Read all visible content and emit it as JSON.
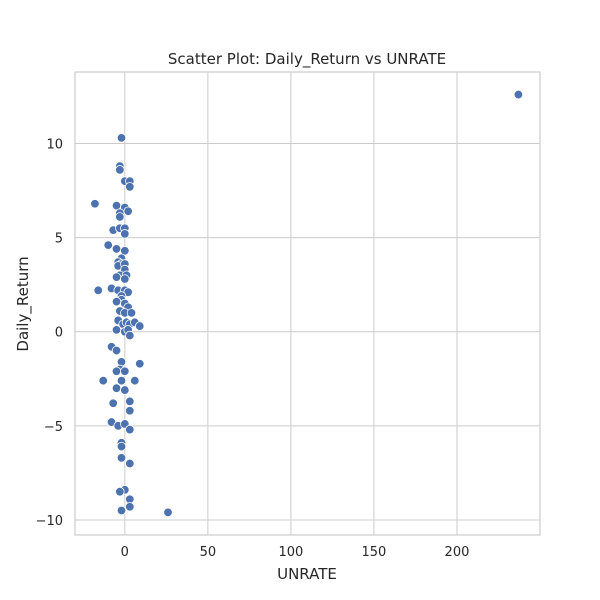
{
  "chart_data": {
    "type": "scatter",
    "title": "Scatter Plot: Daily_Return vs UNRATE",
    "xlabel": "UNRATE",
    "ylabel": "Daily_Return",
    "xlim": [
      -30,
      250
    ],
    "ylim": [
      -10.8,
      13.8
    ],
    "grid": true,
    "style": {
      "background": "#ffffff",
      "grid_color": "#cccccc",
      "point_color": "#4c72b0",
      "point_edge": "#ffffff"
    },
    "x_ticks": [
      {
        "value": 0,
        "label": "0"
      },
      {
        "value": 50,
        "label": "50"
      },
      {
        "value": 100,
        "label": "100"
      },
      {
        "value": 150,
        "label": "150"
      },
      {
        "value": 200,
        "label": "200"
      }
    ],
    "y_ticks": [
      {
        "value": -10,
        "label": "−10"
      },
      {
        "value": -5,
        "label": "−5"
      },
      {
        "value": 0,
        "label": "0"
      },
      {
        "value": 5,
        "label": "5"
      },
      {
        "value": 10,
        "label": "10"
      }
    ],
    "series": [
      {
        "points": [
          [
            -2,
            10.3
          ],
          [
            -3,
            8.8
          ],
          [
            -3,
            8.6
          ],
          [
            0,
            8.0
          ],
          [
            3,
            8.0
          ],
          [
            3,
            7.7
          ],
          [
            -18,
            6.8
          ],
          [
            -5,
            6.7
          ],
          [
            0,
            6.6
          ],
          [
            2,
            6.4
          ],
          [
            -3,
            6.3
          ],
          [
            -3,
            6.1
          ],
          [
            -7,
            5.4
          ],
          [
            -3,
            5.5
          ],
          [
            0,
            5.5
          ],
          [
            0,
            5.2
          ],
          [
            -10,
            4.6
          ],
          [
            -5,
            4.4
          ],
          [
            0,
            4.3
          ],
          [
            -2,
            3.9
          ],
          [
            -4,
            3.7
          ],
          [
            -2,
            3.6
          ],
          [
            -4,
            3.5
          ],
          [
            0,
            3.6
          ],
          [
            0,
            3.3
          ],
          [
            -3,
            3.0
          ],
          [
            1,
            3.0
          ],
          [
            -5,
            2.9
          ],
          [
            0,
            2.8
          ],
          [
            -16,
            2.2
          ],
          [
            -8,
            2.3
          ],
          [
            -4,
            2.2
          ],
          [
            0,
            2.2
          ],
          [
            2,
            2.1
          ],
          [
            -2,
            1.9
          ],
          [
            -2,
            1.7
          ],
          [
            -5,
            1.6
          ],
          [
            0,
            1.5
          ],
          [
            2,
            1.3
          ],
          [
            -3,
            1.1
          ],
          [
            0,
            1.0
          ],
          [
            4,
            1.0
          ],
          [
            -4,
            0.6
          ],
          [
            -1,
            0.4
          ],
          [
            1,
            0.5
          ],
          [
            3,
            0.4
          ],
          [
            6,
            0.5
          ],
          [
            9,
            0.3
          ],
          [
            -5,
            0.1
          ],
          [
            0,
            0.0
          ],
          [
            2,
            0.1
          ],
          [
            3,
            -0.2
          ],
          [
            -8,
            -0.8
          ],
          [
            -5,
            -1.0
          ],
          [
            -2,
            -1.6
          ],
          [
            9,
            -1.7
          ],
          [
            -3,
            -2.0
          ],
          [
            -5,
            -2.1
          ],
          [
            0,
            -2.1
          ],
          [
            -13,
            -2.6
          ],
          [
            -2,
            -2.6
          ],
          [
            6,
            -2.6
          ],
          [
            -5,
            -3.0
          ],
          [
            0,
            -3.1
          ],
          [
            3,
            -3.7
          ],
          [
            -7,
            -3.8
          ],
          [
            3,
            -4.2
          ],
          [
            -8,
            -4.8
          ],
          [
            -4,
            -5.0
          ],
          [
            0,
            -4.9
          ],
          [
            3,
            -5.2
          ],
          [
            -2,
            -5.9
          ],
          [
            -2,
            -6.1
          ],
          [
            -2,
            -6.7
          ],
          [
            3,
            -7.0
          ],
          [
            0,
            -8.4
          ],
          [
            -3,
            -8.5
          ],
          [
            3,
            -8.9
          ],
          [
            3,
            -9.3
          ],
          [
            -2,
            -9.5
          ],
          [
            26,
            -9.6
          ],
          [
            237,
            12.6
          ]
        ]
      }
    ]
  }
}
